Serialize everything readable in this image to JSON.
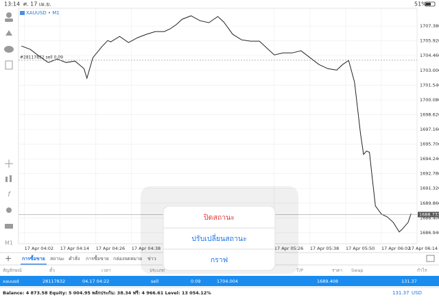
{
  "status_bar": {
    "time": "13:14",
    "date": "ศ. 17 เม.ย.",
    "battery": "51%"
  },
  "chart_data": {
    "type": "line",
    "title": "XAUUSD • M1",
    "color": "#222222",
    "grid": true,
    "x": [
      1,
      4,
      7,
      10,
      13,
      16,
      19,
      22,
      23,
      25,
      28,
      30,
      31,
      34,
      37,
      40,
      43,
      46,
      49,
      51,
      53,
      55,
      58,
      61,
      64,
      67,
      69,
      72,
      75,
      78,
      81,
      84,
      86,
      89,
      92,
      95,
      98,
      101,
      104,
      107,
      109,
      111,
      113,
      115,
      116,
      117,
      118,
      119,
      120,
      122,
      124,
      126,
      128,
      129,
      131,
      132
    ],
    "values": [
      1705.41,
      1705.07,
      1704.39,
      1703.78,
      1704.12,
      1703.78,
      1703.92,
      1703.17,
      1702.22,
      1704.26,
      1705.34,
      1705.95,
      1705.82,
      1706.36,
      1705.75,
      1706.23,
      1706.57,
      1706.84,
      1706.84,
      1707.11,
      1707.52,
      1708.06,
      1708.4,
      1707.92,
      1707.72,
      1708.33,
      1707.79,
      1706.57,
      1706.02,
      1705.89,
      1705.89,
      1705.07,
      1704.53,
      1704.73,
      1704.73,
      1704.94,
      1704.26,
      1703.58,
      1703.17,
      1703.03,
      1703.58,
      1703.98,
      1701.81,
      1696.72,
      1694.68,
      1695.02,
      1694.89,
      1692.17,
      1689.59,
      1688.78,
      1688.5,
      1687.96,
      1687.01,
      1687.28,
      1687.96,
      1688.84
    ],
    "xlim": [
      0,
      134
    ],
    "xticks": [
      {
        "value": 2,
        "label": "17 Apr 04:02"
      },
      {
        "value": 14,
        "label": "17 Apr 04:14"
      },
      {
        "value": 26,
        "label": "17 Apr 04:26"
      },
      {
        "value": 38,
        "label": "17 Apr 04:38"
      },
      {
        "value": 86,
        "label": "17 Apr 05:26"
      },
      {
        "value": 98,
        "label": "17 Apr 05:38"
      },
      {
        "value": 110,
        "label": "17 Apr 05:50"
      },
      {
        "value": 122,
        "label": "17 Apr 06:02"
      },
      {
        "value": 134,
        "label": "17 Apr 06:14"
      }
    ],
    "ylim": [
      1685.85,
      1709.15
    ],
    "yticks": [
      {
        "value": 1707.38,
        "label": "1707.380"
      },
      {
        "value": 1705.92,
        "label": "1705.920"
      },
      {
        "value": 1704.46,
        "label": "1704.460"
      },
      {
        "value": 1703,
        "label": "1703.000"
      },
      {
        "value": 1701.54,
        "label": "1701.540"
      },
      {
        "value": 1700.08,
        "label": "1700.080"
      },
      {
        "value": 1698.62,
        "label": "1698.620"
      },
      {
        "value": 1697.16,
        "label": "1697.160"
      },
      {
        "value": 1695.7,
        "label": "1695.700"
      },
      {
        "value": 1694.24,
        "label": "1694.240"
      },
      {
        "value": 1692.78,
        "label": "1692.780"
      },
      {
        "value": 1691.32,
        "label": "1691.320"
      },
      {
        "value": 1689.86,
        "label": "1689.860"
      },
      {
        "value": 1688.4,
        "label": "1688.400"
      },
      {
        "value": 1686.94,
        "label": "1686.940"
      }
    ],
    "current_price": 1688.733,
    "order_line": {
      "label": "#28117832 sell 0.09",
      "value": 1704.004
    }
  },
  "tabs": [
    "การซื้อขาย",
    "สถานะ",
    "คำสั่ง",
    "การซื้อขาย",
    "กล่องจดหมาย",
    "ข่าว"
  ],
  "table": {
    "headers": [
      "สัญลักษณ์",
      "ตั๋ว",
      "เวลา",
      "ประเภท",
      "T/P",
      "ราคา",
      "Swap",
      "กำไร"
    ],
    "rows": [
      [
        "xauusd",
        "28117832",
        "04.17 04:22",
        "sell",
        "0.09",
        "1704.004",
        "1689.408",
        "131.37"
      ]
    ]
  },
  "footer": {
    "account": "Balance: 4 873.58 Equity: 5 004.95 พลักประกัน: 38.34 ฟรี: 4 966.61 Level: 13 054.12%",
    "profit": "131.37",
    "currency": "USD"
  },
  "popup": {
    "items": [
      "ปิดสถานะ",
      "ปรับเปลี่ยนสถานะ",
      "กราฟ"
    ]
  }
}
